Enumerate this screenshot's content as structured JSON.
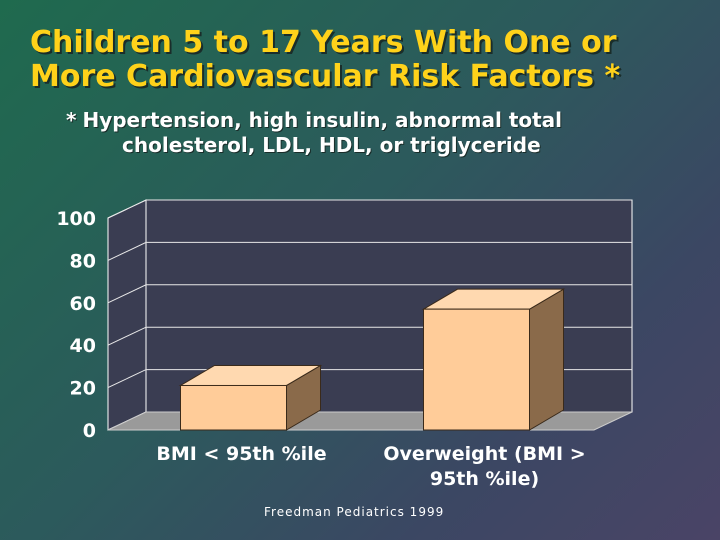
{
  "slide": {
    "title_line1": "Children 5 to 17 Years With One or",
    "title_line2": "More Cardiovascular Risk Factors *",
    "subtitle_star": "*",
    "subtitle_line1": "Hypertension, high insulin, abnormal total",
    "subtitle_line2": "cholesterol, LDL, HDL, or triglyceride",
    "source": "Freedman Pediatrics 1999"
  },
  "colors": {
    "title": "#ffd21a",
    "bar_front": "#ffcc99",
    "bar_top": "#ffd9b0",
    "bar_side": "#8a6a4a",
    "wall": "#3a3d52",
    "floor": "#9a9a9a"
  },
  "chart_data": {
    "type": "bar",
    "title": "Children 5 to 17 Years With One or More Cardiovascular Risk Factors *",
    "categories": [
      [
        "BMI < 95th %ile"
      ],
      [
        "Overweight (BMI >",
        "95th %ile)"
      ]
    ],
    "values": [
      21,
      57
    ],
    "yticks": [
      0,
      20,
      40,
      60,
      80,
      100
    ],
    "ylim": [
      0,
      100
    ],
    "xlabel": "",
    "ylabel": "",
    "grid": true
  }
}
